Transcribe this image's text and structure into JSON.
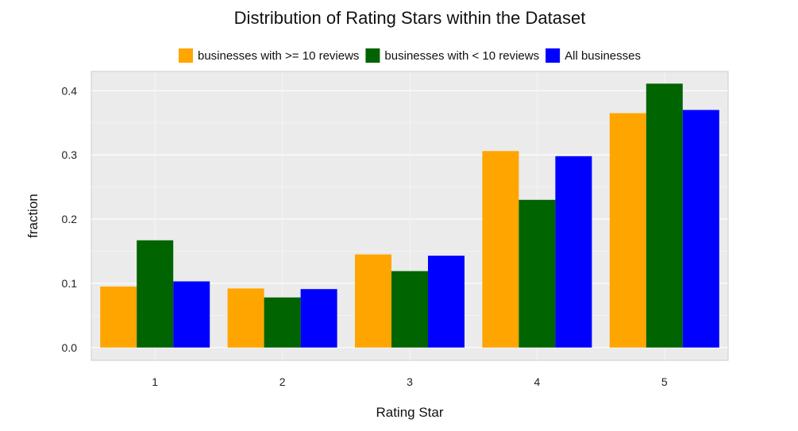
{
  "chart_data": {
    "type": "bar",
    "title": "Distribution of Rating Stars within the Dataset",
    "xlabel": "Rating Star",
    "ylabel": "fraction",
    "categories": [
      "1",
      "2",
      "3",
      "4",
      "5"
    ],
    "series": [
      {
        "name": "businesses with >= 10 reviews",
        "color": "#FFA500",
        "values": [
          0.095,
          0.092,
          0.145,
          0.306,
          0.365
        ]
      },
      {
        "name": "businesses with < 10 reviews",
        "color": "#006400",
        "values": [
          0.167,
          0.078,
          0.119,
          0.23,
          0.411
        ]
      },
      {
        "name": "All businesses",
        "color": "#0000FF",
        "values": [
          0.103,
          0.091,
          0.143,
          0.298,
          0.37
        ]
      }
    ],
    "ylim": [
      -0.02,
      0.43
    ],
    "yticks": [
      "0.0",
      "0.1",
      "0.2",
      "0.3",
      "0.4"
    ],
    "grid": true,
    "legend_position": "top-center",
    "background_color": "#EBEBEB"
  }
}
